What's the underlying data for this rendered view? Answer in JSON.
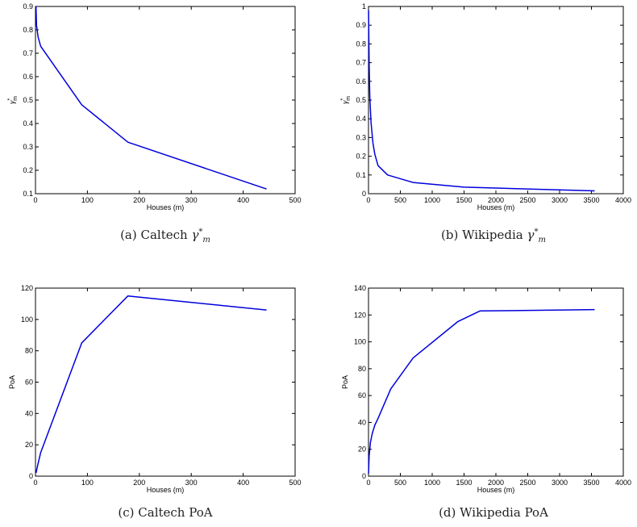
{
  "chart_data": [
    {
      "id": "a",
      "type": "line",
      "xlabel": "Houses (m)",
      "ylabel_symbol": "γ",
      "ylabel_sup": "*",
      "ylabel_sub": "m",
      "xlim": [
        0,
        500
      ],
      "ylim": [
        0.1,
        0.9
      ],
      "xticks": [
        "0",
        "100",
        "200",
        "300",
        "400",
        "500"
      ],
      "yticks": [
        "0.1",
        "0.2",
        "0.3",
        "0.4",
        "0.5",
        "0.6",
        "0.7",
        "0.8",
        "0.9"
      ],
      "color": "#0000dd",
      "series": [
        {
          "x": [
            1,
            2,
            5,
            10,
            89,
            178,
            445
          ],
          "y": [
            0.9,
            0.82,
            0.77,
            0.73,
            0.48,
            0.32,
            0.12
          ]
        }
      ],
      "caption": {
        "prefix": "(a) Caltech ",
        "sym": "γ",
        "sup": "*",
        "sub": "m"
      }
    },
    {
      "id": "b",
      "type": "line",
      "xlabel": "Houses (m)",
      "ylabel_symbol": "γ",
      "ylabel_sup": "*",
      "ylabel_sub": "m",
      "xlim": [
        0,
        4000
      ],
      "ylim": [
        0,
        1
      ],
      "xticks": [
        "0",
        "500",
        "1000",
        "1500",
        "2000",
        "2500",
        "3000",
        "3500",
        "4000"
      ],
      "yticks": [
        "0",
        "0.1",
        "0.2",
        "0.3",
        "0.4",
        "0.5",
        "0.6",
        "0.7",
        "0.8",
        "0.9",
        "1"
      ],
      "color": "#0000dd",
      "series": [
        {
          "x": [
            1,
            10,
            20,
            40,
            70,
            100,
            150,
            300,
            700,
            1500,
            3550
          ],
          "y": [
            0.98,
            0.7,
            0.52,
            0.38,
            0.27,
            0.21,
            0.15,
            0.1,
            0.06,
            0.035,
            0.015
          ]
        }
      ],
      "caption": {
        "prefix": "(b) Wikipedia ",
        "sym": "γ",
        "sup": "*",
        "sub": "m"
      }
    },
    {
      "id": "c",
      "type": "line",
      "xlabel": "Houses (m)",
      "ylabel": "PoA",
      "xlim": [
        0,
        500
      ],
      "ylim": [
        0,
        120
      ],
      "xticks": [
        "0",
        "100",
        "200",
        "300",
        "400",
        "500"
      ],
      "yticks": [
        "0",
        "20",
        "40",
        "60",
        "80",
        "100",
        "120"
      ],
      "color": "#0000dd",
      "series": [
        {
          "x": [
            1,
            5,
            10,
            89,
            178,
            445
          ],
          "y": [
            2,
            8,
            15,
            85,
            115,
            106
          ]
        }
      ],
      "caption": {
        "prefix": "(c) Caltech PoA"
      }
    },
    {
      "id": "d",
      "type": "line",
      "xlabel": "Houses (m)",
      "ylabel": "PoA",
      "xlim": [
        0,
        4000
      ],
      "ylim": [
        0,
        140
      ],
      "xticks": [
        "0",
        "500",
        "1000",
        "1500",
        "2000",
        "2500",
        "3000",
        "3500",
        "4000"
      ],
      "yticks": [
        "0",
        "20",
        "40",
        "60",
        "80",
        "100",
        "120",
        "140"
      ],
      "color": "#0000dd",
      "series": [
        {
          "x": [
            1,
            10,
            30,
            60,
            100,
            150,
            350,
            700,
            1400,
            1750,
            3550
          ],
          "y": [
            2,
            15,
            25,
            32,
            38,
            43,
            65,
            88,
            115,
            123,
            124
          ]
        }
      ],
      "caption": {
        "prefix": "(d) Wikipedia PoA"
      }
    }
  ]
}
